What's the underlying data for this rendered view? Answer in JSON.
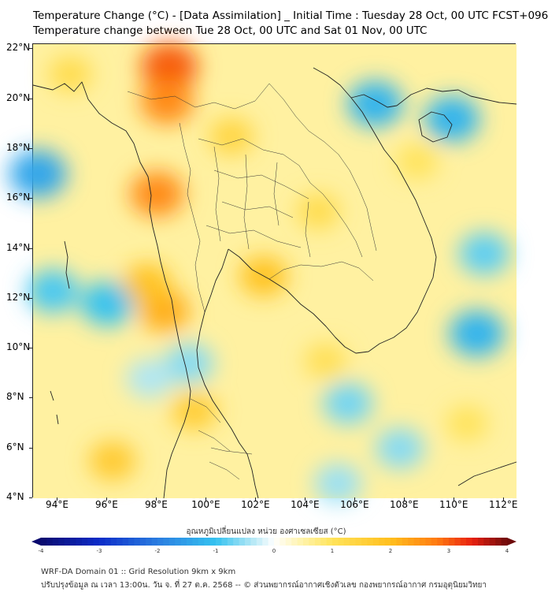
{
  "title_line1": "Temperature Change (°C) - [Data Assimilation] _ Initial Time : Tuesday 28 Oct, 00 UTC FCST+096",
  "title_line2": "Temperature change between Tue 28 Oct, 00 UTC and Sat 01 Nov, 00 UTC",
  "lat_labels": [
    "22°N",
    "20°N",
    "18°N",
    "16°N",
    "14°N",
    "12°N",
    "10°N",
    "8°N",
    "6°N",
    "4°N"
  ],
  "lon_labels": [
    "94°E",
    "96°E",
    "98°E",
    "100°E",
    "102°E",
    "104°E",
    "106°E",
    "108°E",
    "110°E",
    "112°E"
  ],
  "colorbar": {
    "title": "อุณหภูมิเปลี่ยนแปลง หน่วย องศาเซลเซียส (°C)",
    "ticks": [
      "-4",
      "-3",
      "-2",
      "-1",
      "0",
      "1",
      "2",
      "3",
      "4"
    ],
    "range": [
      -4,
      4
    ],
    "colors": [
      "#0a0a6e",
      "#0c2cc8",
      "#2a7de0",
      "#35c2f0",
      "#aee6f5",
      "#ffffff",
      "#fff5b8",
      "#ffe35a",
      "#ffbf1e",
      "#ff7a10",
      "#e8200e",
      "#6e0a0a"
    ]
  },
  "footer_line1": "WRF-DA Domain 01 :: Grid Resolution 9km x 9km",
  "footer_line2": "ปรับปรุงข้อมูล ณ เวลา 13:00น. วัน จ. ที่ 27 ต.ค. 2568 -- © ส่วนพยากรณ์อากาศเชิงตัวเลข กองพยากรณ์อากาศ กรมอุตุนิยมวิทยา",
  "map": {
    "extent": {
      "lon": [
        93,
        112.5
      ],
      "lat": [
        4,
        22.2
      ]
    },
    "field_hotspots": [
      {
        "lon": 98.5,
        "lat": 21.3,
        "value": 3.0
      },
      {
        "lon": 98.4,
        "lat": 19.9,
        "value": 2.6
      },
      {
        "lon": 98.0,
        "lat": 16.2,
        "value": 2.6
      },
      {
        "lon": 98.3,
        "lat": 11.5,
        "value": 2.2
      },
      {
        "lon": 97.6,
        "lat": 12.6,
        "value": 1.9
      },
      {
        "lon": 102.3,
        "lat": 12.9,
        "value": 1.9
      },
      {
        "lon": 96.2,
        "lat": 5.5,
        "value": 1.7
      },
      {
        "lon": 99.5,
        "lat": 7.5,
        "value": 1.6
      },
      {
        "lon": 101.0,
        "lat": 18.5,
        "value": 1.4
      },
      {
        "lon": 104.5,
        "lat": 15.5,
        "value": 1.2
      },
      {
        "lon": 94.5,
        "lat": 21.0,
        "value": 1.2
      },
      {
        "lon": 108.5,
        "lat": 17.5,
        "value": 1.0
      },
      {
        "lon": 110.5,
        "lat": 7.0,
        "value": 1.0
      },
      {
        "lon": 104.8,
        "lat": 9.5,
        "value": 1.1
      }
    ],
    "cool_spots": [
      {
        "lon": 93.2,
        "lat": 17.0,
        "value": -1.4
      },
      {
        "lon": 106.8,
        "lat": 19.8,
        "value": -1.2
      },
      {
        "lon": 109.9,
        "lat": 19.2,
        "value": -1.2
      },
      {
        "lon": 110.9,
        "lat": 10.6,
        "value": -1.2
      },
      {
        "lon": 93.8,
        "lat": 12.3,
        "value": -0.9
      },
      {
        "lon": 96.0,
        "lat": 11.8,
        "value": -1.0
      },
      {
        "lon": 105.7,
        "lat": 7.8,
        "value": -0.7
      },
      {
        "lon": 107.8,
        "lat": 6.0,
        "value": -0.6
      },
      {
        "lon": 111.2,
        "lat": 13.8,
        "value": -0.8
      },
      {
        "lon": 105.3,
        "lat": 4.6,
        "value": -0.5
      },
      {
        "lon": 99.3,
        "lat": 9.4,
        "value": -0.6
      },
      {
        "lon": 97.7,
        "lat": 8.8,
        "value": -0.4
      }
    ]
  }
}
